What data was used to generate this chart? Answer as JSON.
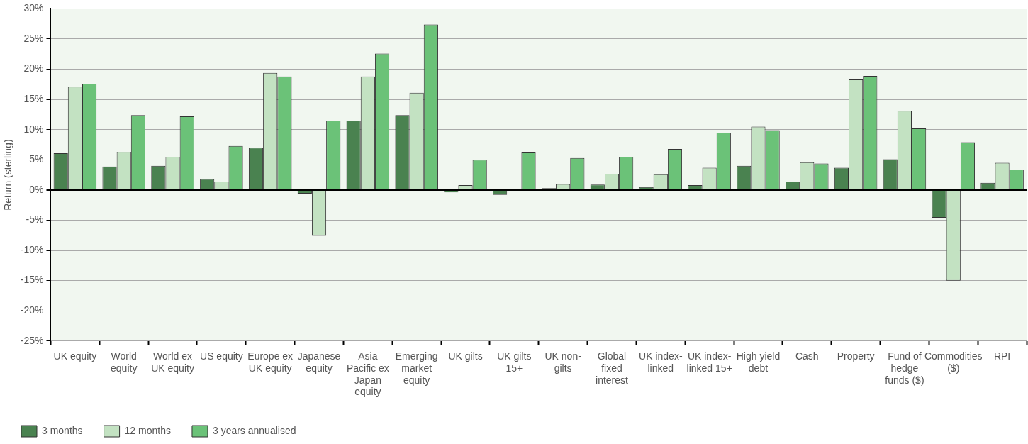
{
  "chart_data": {
    "type": "bar",
    "ylabel": "Return (sterling)",
    "categories": [
      "UK equity",
      "World equity",
      "World ex UK equity",
      "US equity",
      "Europe ex UK equity",
      "Japanese equity",
      "Asia Pacific ex Japan equity",
      "Emerging market equity",
      "UK gilts",
      "UK gilts 15+",
      "UK non-gilts",
      "Global fixed interest",
      "UK index-linked",
      "UK index-linked 15+",
      "High yield debt",
      "Cash",
      "Property",
      "Fund of hedge funds ($)",
      "Commodities ($)",
      "RPI"
    ],
    "series": [
      {
        "name": "3 months",
        "color": "#4a8250",
        "values": [
          6.1,
          3.9,
          4.0,
          1.8,
          7.0,
          -0.6,
          11.5,
          12.4,
          -0.4,
          -0.8,
          0.3,
          0.9,
          0.5,
          0.8,
          4.0,
          1.4,
          3.7,
          5.1,
          -4.6,
          1.2
        ]
      },
      {
        "name": "12 months",
        "color": "#c3e2c2",
        "values": [
          17.1,
          6.3,
          5.5,
          1.4,
          19.4,
          -7.6,
          18.8,
          16.1,
          0.8,
          0,
          1.0,
          2.7,
          2.6,
          3.7,
          10.5,
          4.6,
          18.3,
          13.1,
          -15.0,
          4.5
        ]
      },
      {
        "name": "3 years annualised",
        "color": "#6bc278",
        "values": [
          17.6,
          12.4,
          12.2,
          7.3,
          18.8,
          11.5,
          22.6,
          27.4,
          5.0,
          6.2,
          5.3,
          5.5,
          6.8,
          9.5,
          9.9,
          4.4,
          18.9,
          10.2,
          7.9,
          3.4
        ]
      }
    ],
    "ylim": [
      -25,
      30
    ],
    "yticks": [
      {
        "value": -25,
        "label": "-25%"
      },
      {
        "value": -20,
        "label": "-20%"
      },
      {
        "value": -15,
        "label": "-15%"
      },
      {
        "value": -10,
        "label": "-10%"
      },
      {
        "value": -5,
        "label": "-5%"
      },
      {
        "value": 0,
        "label": "0%"
      },
      {
        "value": 5,
        "label": "5%"
      },
      {
        "value": 10,
        "label": "10%"
      },
      {
        "value": 15,
        "label": "15%"
      },
      {
        "value": 20,
        "label": "20%"
      },
      {
        "value": 25,
        "label": "25%"
      },
      {
        "value": 30,
        "label": "30%"
      }
    ],
    "grid": "y",
    "legend": "bottom left"
  }
}
